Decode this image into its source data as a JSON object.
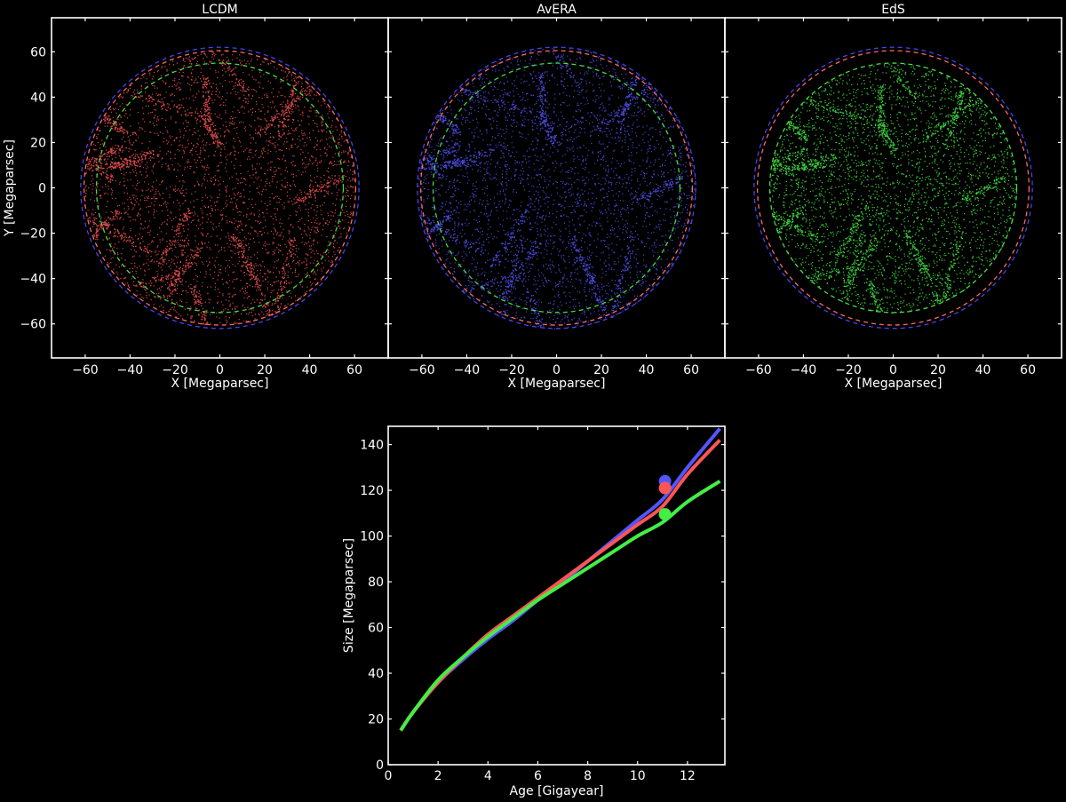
{
  "chart_data": [
    {
      "type": "scatter",
      "title": "LCDM",
      "xlabel": "X [Megaparsec]",
      "ylabel": "Y [Megaparsec]",
      "xlim": [
        -75,
        75
      ],
      "ylim": [
        -75,
        75
      ],
      "xticks": [
        -60,
        -40,
        -20,
        0,
        20,
        40,
        60
      ],
      "yticks": [
        -60,
        -40,
        -20,
        0,
        20,
        40,
        60
      ],
      "particle_color": "#ff5555",
      "particle_radius": 60.5,
      "circles": [
        {
          "color": "#4444ee",
          "radius": 62,
          "style": "dashed"
        },
        {
          "color": "#ff6666",
          "radius": 60.5,
          "style": "dashed"
        },
        {
          "color": "#44dd44",
          "radius": 55,
          "style": "dashed"
        }
      ],
      "grid": false
    },
    {
      "type": "scatter",
      "title": "AvERA",
      "xlabel": "X [Megaparsec]",
      "ylabel": "",
      "xlim": [
        -75,
        75
      ],
      "ylim": [
        -75,
        75
      ],
      "xticks": [
        -60,
        -40,
        -20,
        0,
        20,
        40,
        60
      ],
      "particle_color": "#5555ff",
      "particle_radius": 62,
      "circles": [
        {
          "color": "#4444ee",
          "radius": 62,
          "style": "dashed"
        },
        {
          "color": "#ff6666",
          "radius": 60.5,
          "style": "dashed"
        },
        {
          "color": "#44dd44",
          "radius": 55,
          "style": "dashed"
        }
      ],
      "grid": false
    },
    {
      "type": "scatter",
      "title": "EdS",
      "xlabel": "X [Megaparsec]",
      "ylabel": "",
      "xlim": [
        -75,
        75
      ],
      "ylim": [
        -75,
        75
      ],
      "xticks": [
        -60,
        -40,
        -20,
        0,
        20,
        40,
        60
      ],
      "particle_color": "#44ee44",
      "particle_radius": 55,
      "circles": [
        {
          "color": "#4444ee",
          "radius": 62,
          "style": "dashed"
        },
        {
          "color": "#ff6666",
          "radius": 60.5,
          "style": "dashed"
        },
        {
          "color": "#44dd44",
          "radius": 55,
          "style": "dashed"
        }
      ],
      "grid": false
    },
    {
      "type": "line",
      "title": "",
      "xlabel": "Age [Gigayear]",
      "ylabel": "Size [Megaparsec]",
      "xlim": [
        0,
        13.5
      ],
      "ylim": [
        0,
        148
      ],
      "xticks": [
        0,
        2,
        4,
        6,
        8,
        10,
        12
      ],
      "yticks": [
        0,
        20,
        40,
        60,
        80,
        100,
        120,
        140
      ],
      "grid": false,
      "series": [
        {
          "name": "AvERA",
          "color": "#5555ff",
          "x": [
            0.5,
            1,
            2,
            3,
            4,
            5,
            6,
            7,
            8,
            9,
            10,
            11,
            12,
            13.3
          ],
          "y": [
            15,
            23,
            36,
            46,
            55,
            63,
            72,
            80,
            89,
            98,
            107,
            116,
            130,
            147
          ]
        },
        {
          "name": "LCDM",
          "color": "#ff5555",
          "x": [
            0.5,
            1,
            2,
            3,
            4,
            5,
            6,
            7,
            8,
            9,
            10,
            11,
            12,
            13.3
          ],
          "y": [
            15,
            23,
            36,
            47,
            57,
            65,
            73,
            81,
            89,
            97,
            105,
            113,
            127,
            142
          ]
        },
        {
          "name": "EdS",
          "color": "#44ee44",
          "x": [
            0.5,
            1,
            2,
            3,
            4,
            5,
            6,
            7,
            8,
            9,
            10,
            11,
            12,
            13.3
          ],
          "y": [
            15,
            23,
            37,
            47,
            56,
            64,
            72,
            79,
            86,
            93,
            100,
            106,
            115,
            124
          ]
        }
      ],
      "markers": [
        {
          "series": "AvERA",
          "x": 11.1,
          "y": 124,
          "color": "#5555ff"
        },
        {
          "series": "LCDM",
          "x": 11.1,
          "y": 121,
          "color": "#ff5555"
        },
        {
          "series": "EdS",
          "x": 11.1,
          "y": 109.5,
          "color": "#44ee44"
        }
      ]
    }
  ]
}
